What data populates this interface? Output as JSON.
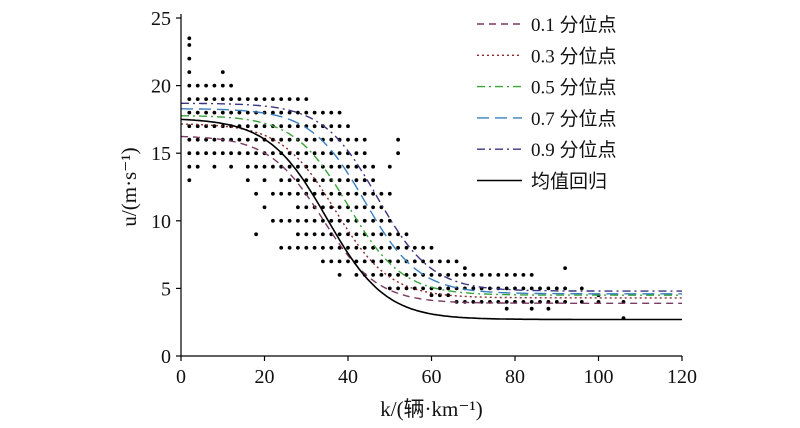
{
  "chart_data": {
    "type": "line",
    "title": "",
    "xlabel": "k/(辆·km⁻¹)",
    "ylabel": "u/(m·s⁻¹)",
    "xlim": [
      0,
      120
    ],
    "ylim": [
      0,
      25
    ],
    "xticks": [
      0,
      20,
      40,
      60,
      80,
      100,
      120
    ],
    "yticks": [
      0,
      5,
      10,
      15,
      20,
      25
    ],
    "grid": false,
    "legend_position": "top-right",
    "series": [
      {
        "name": "0.1 分位点",
        "style": "dashed",
        "color": "#7a3b63",
        "vf": 16.3,
        "vb": 3.9,
        "k0": 34,
        "w": 6.5
      },
      {
        "name": "0.3 分位点",
        "style": "dotted",
        "color": "#8b2a2a",
        "vf": 17.2,
        "vb": 4.3,
        "k0": 37,
        "w": 6.5
      },
      {
        "name": "0.5 分位点",
        "style": "dashdot",
        "color": "#3aa33a",
        "vf": 17.8,
        "vb": 4.5,
        "k0": 40,
        "w": 6.5
      },
      {
        "name": "0.7 分位点",
        "style": "longdash",
        "color": "#3a7fc0",
        "vf": 18.3,
        "vb": 4.6,
        "k0": 44,
        "w": 6.5
      },
      {
        "name": "0.9 分位点",
        "style": "dashdot",
        "color": "#3a3580",
        "vf": 18.7,
        "vb": 4.8,
        "k0": 47,
        "w": 6.5
      },
      {
        "name": "均值回归",
        "style": "solid",
        "color": "#000000",
        "vf": 17.6,
        "vb": 2.7,
        "k0": 35,
        "w": 7.0
      }
    ],
    "scatter": {
      "name": "observations",
      "color": "#000000",
      "points": [
        [
          2,
          13
        ],
        [
          2,
          14
        ],
        [
          2,
          15
        ],
        [
          2,
          16
        ],
        [
          2,
          17
        ],
        [
          2,
          18
        ],
        [
          2,
          19
        ],
        [
          2,
          20
        ],
        [
          2,
          21
        ],
        [
          2,
          22
        ],
        [
          2,
          23
        ],
        [
          2,
          23.5
        ],
        [
          4,
          14
        ],
        [
          4,
          15
        ],
        [
          4,
          16
        ],
        [
          4,
          17
        ],
        [
          4,
          18
        ],
        [
          4,
          19
        ],
        [
          4,
          20
        ],
        [
          6,
          15
        ],
        [
          6,
          16
        ],
        [
          6,
          17
        ],
        [
          6,
          18
        ],
        [
          6,
          19
        ],
        [
          6,
          20
        ],
        [
          8,
          14
        ],
        [
          8,
          15
        ],
        [
          8,
          16
        ],
        [
          8,
          17
        ],
        [
          8,
          18
        ],
        [
          8,
          19
        ],
        [
          8,
          20
        ],
        [
          10,
          15
        ],
        [
          10,
          16
        ],
        [
          10,
          17
        ],
        [
          10,
          18
        ],
        [
          10,
          19
        ],
        [
          10,
          20
        ],
        [
          10,
          21
        ],
        [
          12,
          14
        ],
        [
          12,
          15
        ],
        [
          12,
          16
        ],
        [
          12,
          17
        ],
        [
          12,
          18
        ],
        [
          12,
          19
        ],
        [
          12,
          20
        ],
        [
          14,
          15
        ],
        [
          14,
          16
        ],
        [
          14,
          17
        ],
        [
          14,
          18
        ],
        [
          14,
          19
        ],
        [
          16,
          13
        ],
        [
          16,
          14
        ],
        [
          16,
          15
        ],
        [
          16,
          16
        ],
        [
          16,
          17
        ],
        [
          16,
          18
        ],
        [
          16,
          19
        ],
        [
          18,
          9
        ],
        [
          18,
          12
        ],
        [
          18,
          14
        ],
        [
          18,
          15
        ],
        [
          18,
          16
        ],
        [
          18,
          17
        ],
        [
          18,
          18
        ],
        [
          18,
          19
        ],
        [
          20,
          11
        ],
        [
          20,
          13
        ],
        [
          20,
          14
        ],
        [
          20,
          15
        ],
        [
          20,
          16
        ],
        [
          20,
          17
        ],
        [
          20,
          18
        ],
        [
          20,
          19
        ],
        [
          22,
          10
        ],
        [
          22,
          12
        ],
        [
          22,
          14
        ],
        [
          22,
          15
        ],
        [
          22,
          16
        ],
        [
          22,
          17
        ],
        [
          22,
          18
        ],
        [
          22,
          19
        ],
        [
          24,
          8
        ],
        [
          24,
          10
        ],
        [
          24,
          12
        ],
        [
          24,
          13
        ],
        [
          24,
          14
        ],
        [
          24,
          15
        ],
        [
          24,
          16
        ],
        [
          24,
          17
        ],
        [
          24,
          18
        ],
        [
          24,
          19
        ],
        [
          26,
          8
        ],
        [
          26,
          10
        ],
        [
          26,
          12
        ],
        [
          26,
          13
        ],
        [
          26,
          14
        ],
        [
          26,
          15
        ],
        [
          26,
          16
        ],
        [
          26,
          17
        ],
        [
          26,
          18
        ],
        [
          26,
          19
        ],
        [
          28,
          8
        ],
        [
          28,
          9
        ],
        [
          28,
          10
        ],
        [
          28,
          11
        ],
        [
          28,
          12
        ],
        [
          28,
          13
        ],
        [
          28,
          14
        ],
        [
          28,
          15
        ],
        [
          28,
          16
        ],
        [
          28,
          17
        ],
        [
          28,
          18
        ],
        [
          28,
          19
        ],
        [
          30,
          8
        ],
        [
          30,
          9
        ],
        [
          30,
          10
        ],
        [
          30,
          11
        ],
        [
          30,
          12
        ],
        [
          30,
          13
        ],
        [
          30,
          14
        ],
        [
          30,
          15
        ],
        [
          30,
          16
        ],
        [
          30,
          17
        ],
        [
          30,
          18
        ],
        [
          30,
          19
        ],
        [
          32,
          8
        ],
        [
          32,
          9
        ],
        [
          32,
          10
        ],
        [
          32,
          11
        ],
        [
          32,
          12
        ],
        [
          32,
          13
        ],
        [
          32,
          14
        ],
        [
          32,
          15
        ],
        [
          32,
          16
        ],
        [
          32,
          17
        ],
        [
          32,
          18
        ],
        [
          34,
          7
        ],
        [
          34,
          8
        ],
        [
          34,
          9
        ],
        [
          34,
          10
        ],
        [
          34,
          11
        ],
        [
          34,
          12
        ],
        [
          34,
          13
        ],
        [
          34,
          14
        ],
        [
          34,
          15
        ],
        [
          34,
          16
        ],
        [
          34,
          17
        ],
        [
          34,
          18
        ],
        [
          36,
          7
        ],
        [
          36,
          8
        ],
        [
          36,
          9
        ],
        [
          36,
          10
        ],
        [
          36,
          11
        ],
        [
          36,
          12
        ],
        [
          36,
          13
        ],
        [
          36,
          14
        ],
        [
          36,
          15
        ],
        [
          36,
          16
        ],
        [
          36,
          17
        ],
        [
          36,
          18
        ],
        [
          38,
          6
        ],
        [
          38,
          7
        ],
        [
          38,
          8
        ],
        [
          38,
          9
        ],
        [
          38,
          10
        ],
        [
          38,
          11
        ],
        [
          38,
          12
        ],
        [
          38,
          13
        ],
        [
          38,
          14
        ],
        [
          38,
          15
        ],
        [
          38,
          16
        ],
        [
          38,
          17
        ],
        [
          38,
          18
        ],
        [
          40,
          7
        ],
        [
          40,
          8
        ],
        [
          40,
          9
        ],
        [
          40,
          10
        ],
        [
          40,
          11
        ],
        [
          40,
          12
        ],
        [
          40,
          13
        ],
        [
          40,
          14
        ],
        [
          40,
          15
        ],
        [
          40,
          16
        ],
        [
          40,
          17
        ],
        [
          42,
          6
        ],
        [
          42,
          7
        ],
        [
          42,
          8
        ],
        [
          42,
          9
        ],
        [
          42,
          10
        ],
        [
          42,
          11
        ],
        [
          42,
          12
        ],
        [
          42,
          13
        ],
        [
          42,
          14
        ],
        [
          42,
          15
        ],
        [
          42,
          16
        ],
        [
          44,
          6
        ],
        [
          44,
          7
        ],
        [
          44,
          8
        ],
        [
          44,
          9
        ],
        [
          44,
          10
        ],
        [
          44,
          11
        ],
        [
          44,
          12
        ],
        [
          44,
          13
        ],
        [
          44,
          14
        ],
        [
          44,
          15
        ],
        [
          44,
          16
        ],
        [
          46,
          6
        ],
        [
          46,
          7
        ],
        [
          46,
          8
        ],
        [
          46,
          9
        ],
        [
          46,
          10
        ],
        [
          46,
          11
        ],
        [
          46,
          12
        ],
        [
          46,
          13
        ],
        [
          46,
          14
        ],
        [
          48,
          6
        ],
        [
          48,
          7
        ],
        [
          48,
          8
        ],
        [
          48,
          9
        ],
        [
          48,
          10
        ],
        [
          48,
          11
        ],
        [
          48,
          12
        ],
        [
          50,
          5
        ],
        [
          50,
          6
        ],
        [
          50,
          7
        ],
        [
          50,
          8
        ],
        [
          50,
          9
        ],
        [
          50,
          10
        ],
        [
          50,
          12
        ],
        [
          50,
          14
        ],
        [
          52,
          5
        ],
        [
          52,
          6
        ],
        [
          52,
          7
        ],
        [
          52,
          8
        ],
        [
          52,
          9
        ],
        [
          52,
          15
        ],
        [
          52,
          16
        ],
        [
          54,
          5
        ],
        [
          54,
          6
        ],
        [
          54,
          7
        ],
        [
          54,
          8
        ],
        [
          54,
          9
        ],
        [
          56,
          5
        ],
        [
          56,
          6
        ],
        [
          56,
          7
        ],
        [
          56,
          8
        ],
        [
          58,
          5
        ],
        [
          58,
          6
        ],
        [
          58,
          7
        ],
        [
          58,
          8
        ],
        [
          60,
          4.5
        ],
        [
          60,
          5
        ],
        [
          60,
          6
        ],
        [
          60,
          7
        ],
        [
          60,
          8
        ],
        [
          62,
          4.5
        ],
        [
          62,
          5
        ],
        [
          62,
          6
        ],
        [
          62,
          7
        ],
        [
          64,
          4.5
        ],
        [
          64,
          5
        ],
        [
          64,
          6
        ],
        [
          64,
          7
        ],
        [
          66,
          4
        ],
        [
          66,
          5
        ],
        [
          66,
          6
        ],
        [
          66,
          7
        ],
        [
          68,
          4
        ],
        [
          68,
          5
        ],
        [
          68,
          6
        ],
        [
          68,
          6.5
        ],
        [
          70,
          4
        ],
        [
          70,
          5
        ],
        [
          70,
          6
        ],
        [
          72,
          4
        ],
        [
          72,
          5
        ],
        [
          72,
          6
        ],
        [
          74,
          4
        ],
        [
          74,
          5
        ],
        [
          74,
          6
        ],
        [
          76,
          4
        ],
        [
          76,
          5
        ],
        [
          76,
          6
        ],
        [
          78,
          3.5
        ],
        [
          78,
          4
        ],
        [
          78,
          5
        ],
        [
          78,
          6
        ],
        [
          80,
          4
        ],
        [
          80,
          5
        ],
        [
          80,
          6
        ],
        [
          82,
          4
        ],
        [
          82,
          5
        ],
        [
          82,
          6
        ],
        [
          84,
          3.5
        ],
        [
          84,
          4
        ],
        [
          84,
          5
        ],
        [
          84,
          6
        ],
        [
          86,
          4
        ],
        [
          86,
          5
        ],
        [
          88,
          3.5
        ],
        [
          88,
          4
        ],
        [
          88,
          5
        ],
        [
          90,
          4
        ],
        [
          90,
          5
        ],
        [
          92,
          4
        ],
        [
          92,
          5
        ],
        [
          92,
          6.5
        ],
        [
          96,
          4
        ],
        [
          96,
          5
        ],
        [
          100,
          4
        ],
        [
          100,
          4.5
        ],
        [
          106,
          2.8
        ],
        [
          106,
          4
        ]
      ]
    }
  }
}
